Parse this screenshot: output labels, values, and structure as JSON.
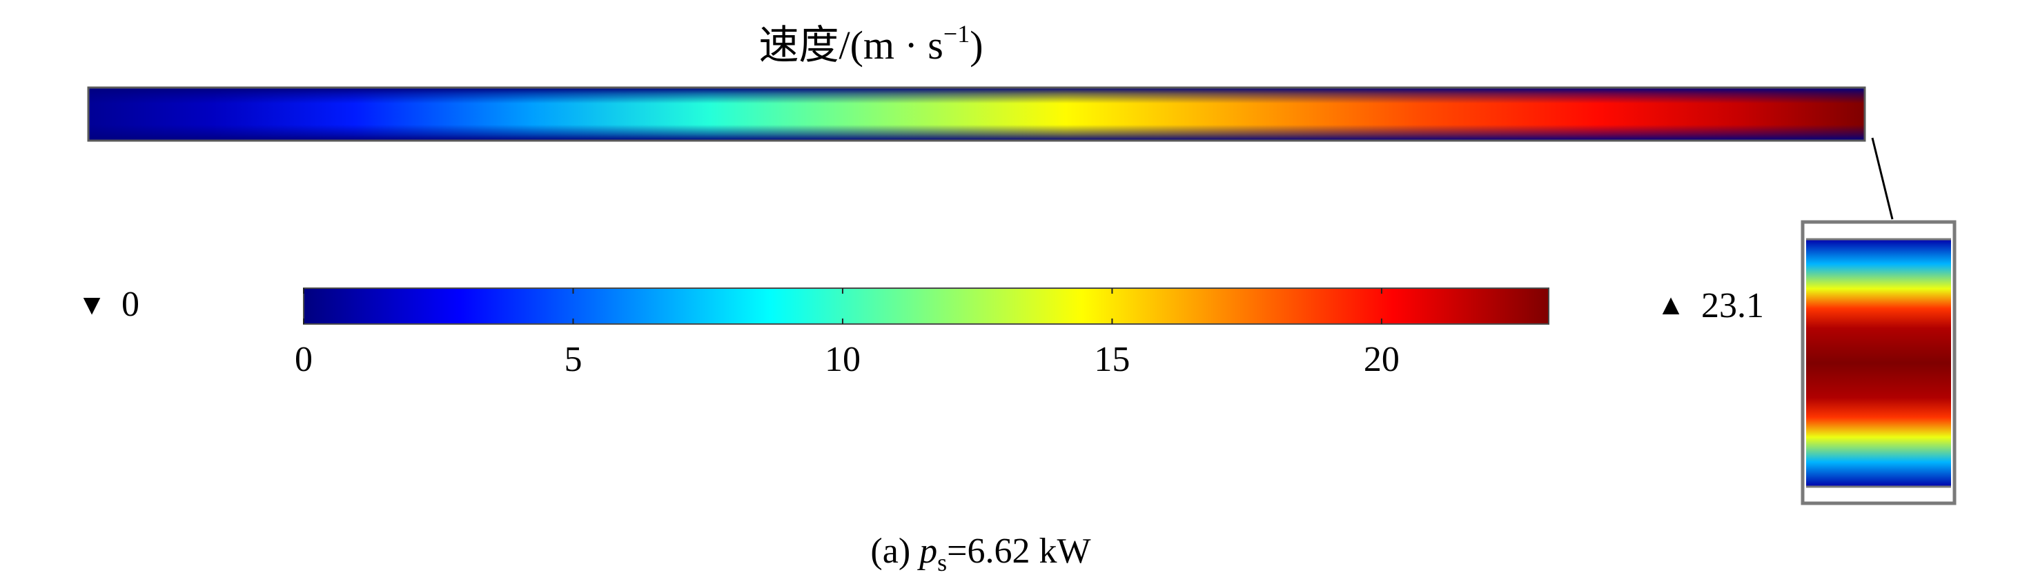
{
  "chart_data": {
    "type": "heatmap",
    "title": {
      "text": "速度/(m · s",
      "superscript": "−1",
      "close": ")"
    },
    "colormap": [
      "#00007f",
      "#0000ff",
      "#007fff",
      "#00ffff",
      "#7fff7f",
      "#ffff00",
      "#ff7f00",
      "#ff0000",
      "#7f0000"
    ],
    "range": {
      "min": 0,
      "max": 23.1
    },
    "min_marker": {
      "symbol": "▼",
      "label": "0"
    },
    "max_marker": {
      "symbol": "▲",
      "label": "23.1"
    },
    "colorbar": {
      "ticks": [
        {
          "value": 0,
          "label": "0"
        },
        {
          "value": 5,
          "label": "5"
        },
        {
          "value": 10,
          "label": "10"
        },
        {
          "value": 15,
          "label": "15"
        },
        {
          "value": 20,
          "label": "20"
        }
      ]
    },
    "channel_profile": {
      "axial_stops": [
        {
          "position": 0.0,
          "value": 0.5
        },
        {
          "position": 0.07,
          "value": 1.5
        },
        {
          "position": 0.15,
          "value": 3.5
        },
        {
          "position": 0.25,
          "value": 6.5
        },
        {
          "position": 0.35,
          "value": 9.5
        },
        {
          "position": 0.45,
          "value": 12.0
        },
        {
          "position": 0.55,
          "value": 14.5
        },
        {
          "position": 0.65,
          "value": 16.5
        },
        {
          "position": 0.75,
          "value": 18.5
        },
        {
          "position": 0.85,
          "value": 20.0
        },
        {
          "position": 0.93,
          "value": 21.5
        },
        {
          "position": 1.0,
          "value": 23.1
        }
      ],
      "inset_radial_stops": [
        {
          "position": 0.0,
          "value": 1.0
        },
        {
          "position": 0.1,
          "value": 7.0
        },
        {
          "position": 0.2,
          "value": 14.0
        },
        {
          "position": 0.28,
          "value": 19.0
        },
        {
          "position": 0.36,
          "value": 22.0
        },
        {
          "position": 0.5,
          "value": 23.1
        },
        {
          "position": 0.64,
          "value": 22.0
        },
        {
          "position": 0.72,
          "value": 19.0
        },
        {
          "position": 0.8,
          "value": 14.0
        },
        {
          "position": 0.9,
          "value": 7.0
        },
        {
          "position": 1.0,
          "value": 1.0
        }
      ]
    },
    "caption": {
      "prefix": "(a) ",
      "var": "p",
      "sub": "s",
      "rest": "=6.62 kW"
    }
  }
}
